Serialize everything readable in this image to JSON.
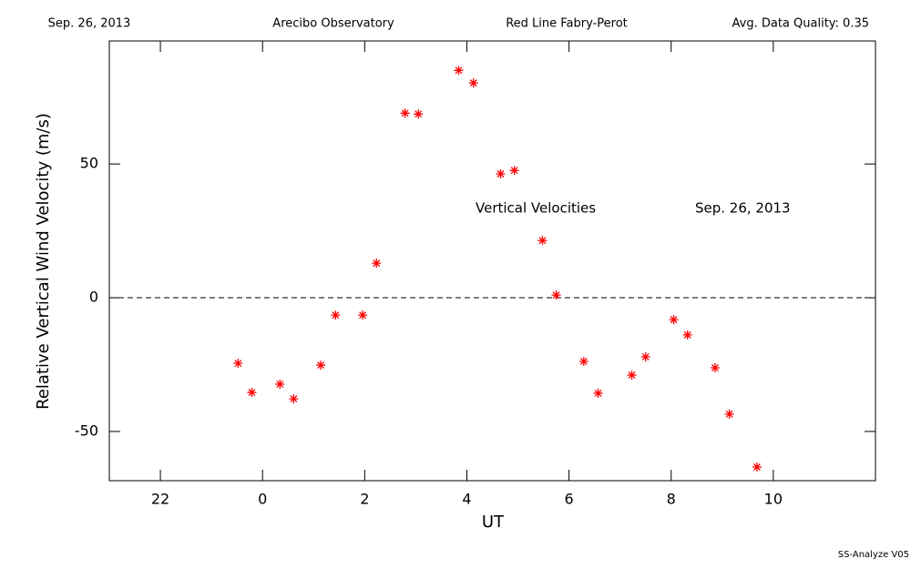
{
  "chart_data": {
    "type": "scatter",
    "header": [
      "Sep. 26, 2013",
      "Arecibo Observatory",
      "Red Line Fabry-Perot",
      "Avg. Data Quality: 0.35"
    ],
    "xlabel": "UT",
    "ylabel": "Relative Vertical Wind Velocity (m/s)",
    "annotations": [
      "Vertical Velocities",
      "Sep. 26, 2013"
    ],
    "footer": "SS-Analyze V05",
    "xlim": [
      -3,
      12
    ],
    "ylim": [
      -68.4,
      96
    ],
    "xticks": [
      {
        "value": -2,
        "label": "22"
      },
      0,
      2,
      4,
      6,
      8,
      10
    ],
    "yticks": [
      -50,
      0,
      50
    ],
    "hline": 0,
    "series": [
      {
        "name": "Vertical Velocities",
        "color": "#ff0000",
        "x": [
          -0.48,
          -0.21,
          0.34,
          0.61,
          1.14,
          1.43,
          1.96,
          2.23,
          2.79,
          3.05,
          3.84,
          4.13,
          4.66,
          4.93,
          5.48,
          5.75,
          6.29,
          6.57,
          7.23,
          7.5,
          8.05,
          8.32,
          8.86,
          9.14,
          9.68
        ],
        "values": [
          -24.5,
          -35.4,
          -32.3,
          -37.8,
          -25.2,
          -6.5,
          -6.5,
          12.9,
          69.0,
          68.7,
          85.0,
          80.3,
          46.3,
          47.6,
          21.4,
          1.0,
          -23.8,
          -35.7,
          -28.9,
          -22.1,
          -8.2,
          -13.9,
          -26.2,
          -43.5,
          -63.3
        ]
      }
    ]
  }
}
